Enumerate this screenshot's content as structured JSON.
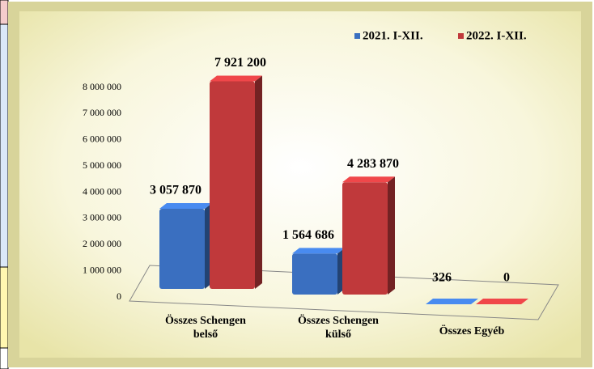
{
  "chart_data": {
    "type": "bar3d",
    "categories": [
      "Összes Schengen belső",
      "Összes Schengen külső",
      "Összes Egyéb"
    ],
    "series": [
      {
        "name": "2021. I-XII.",
        "color": "#3a6fc0",
        "values": [
          3057870,
          1564686,
          326
        ],
        "value_labels": [
          "3 057 870",
          "1 564 686",
          "326"
        ]
      },
      {
        "name": "2022. I-XII.",
        "color": "#c0393b",
        "values": [
          7921200,
          4283870,
          0
        ],
        "value_labels": [
          "7 921 200",
          "4 283 870",
          "0"
        ]
      }
    ],
    "ylim": [
      0,
      8000000
    ],
    "yticks": [
      {
        "value": 0,
        "label": "0"
      },
      {
        "value": 1000000,
        "label": "1 000 000"
      },
      {
        "value": 2000000,
        "label": "2 000 000"
      },
      {
        "value": 3000000,
        "label": "3 000 000"
      },
      {
        "value": 4000000,
        "label": "4 000 000"
      },
      {
        "value": 5000000,
        "label": "5 000 000"
      },
      {
        "value": 6000000,
        "label": "6 000 000"
      },
      {
        "value": 7000000,
        "label": "7 000 000"
      },
      {
        "value": 8000000,
        "label": "8 000 000"
      }
    ],
    "legend": "top-right",
    "grid": false
  }
}
